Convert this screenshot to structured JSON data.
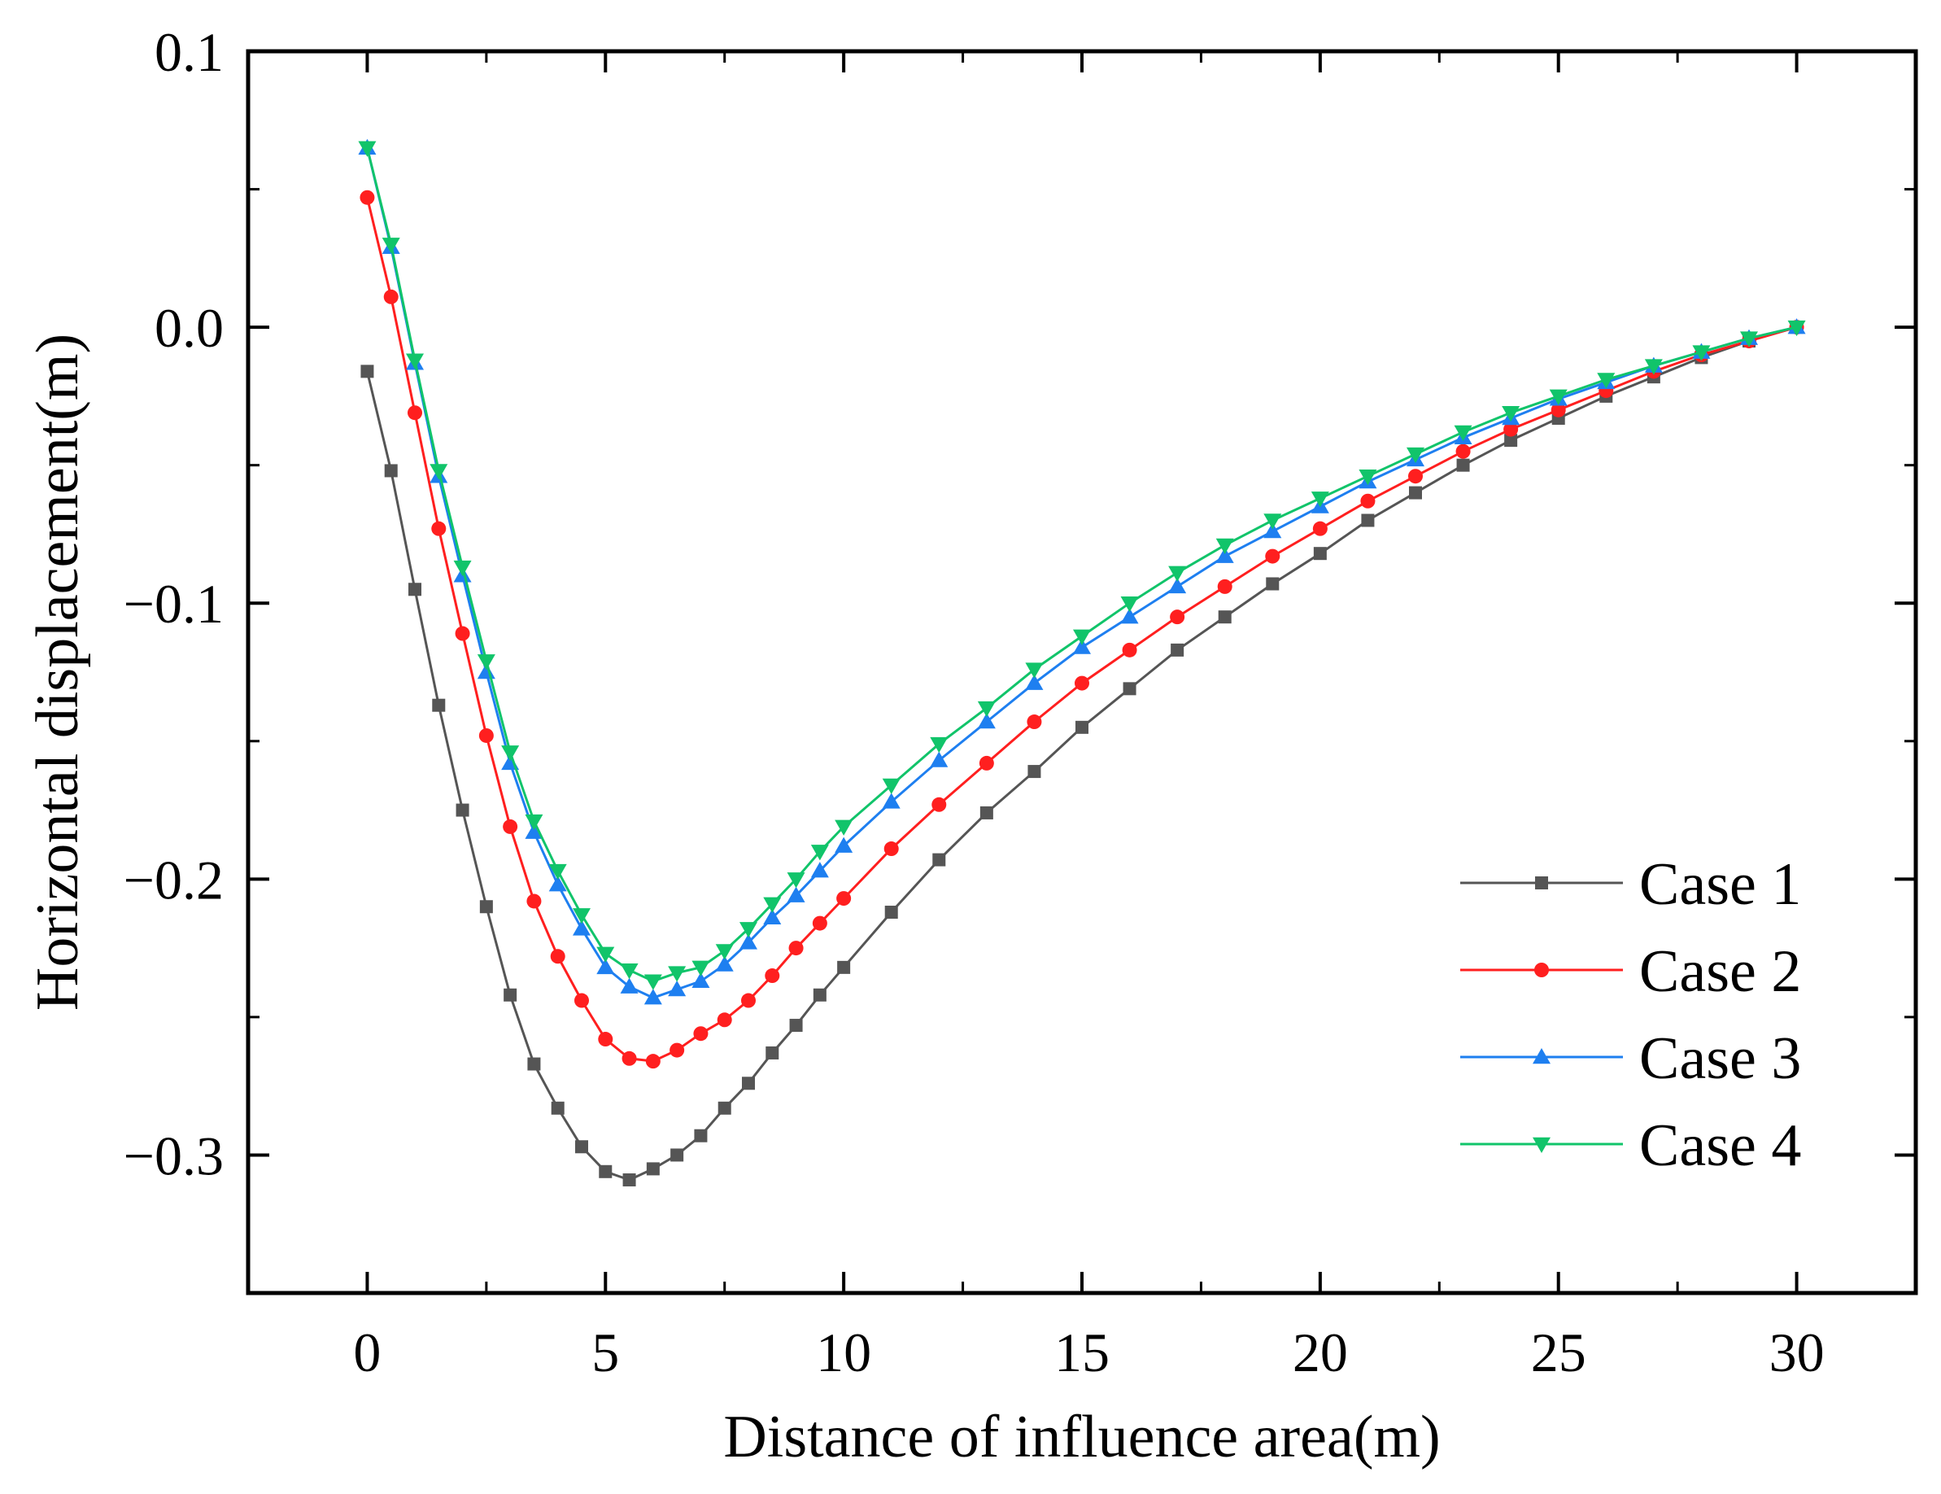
{
  "chart_data": {
    "type": "line",
    "title": "",
    "xlabel": "Distance of influence area(m)",
    "ylabel": "Horizontal displacement(m)",
    "xlim": [
      -2.5,
      32.5
    ],
    "ylim": [
      -0.35,
      0.1
    ],
    "x_ticks": [
      0,
      5,
      10,
      15,
      20,
      25,
      30
    ],
    "x_tick_labels": [
      "0",
      "5",
      "10",
      "15",
      "20",
      "25",
      "30"
    ],
    "y_ticks": [
      0.1,
      0.0,
      -0.1,
      -0.2,
      -0.3
    ],
    "y_tick_labels": [
      "0.1",
      "0.0",
      "−0.1",
      "−0.2",
      "−0.3"
    ],
    "grid": false,
    "legend_position": "bottom-right",
    "series": [
      {
        "name": "Case 1",
        "color": "#555555",
        "marker": "square",
        "x": [
          0,
          0.5,
          1,
          1.5,
          2,
          2.5,
          3,
          3.5,
          4,
          4.5,
          5,
          5.5,
          6,
          6.5,
          7,
          7.5,
          8,
          8.5,
          9,
          9.5,
          10,
          11,
          12,
          13,
          14,
          15,
          16,
          17,
          18,
          19,
          20,
          21,
          22,
          23,
          24,
          25,
          26,
          27,
          28,
          29,
          30
        ],
        "y": [
          -0.016,
          -0.052,
          -0.095,
          -0.137,
          -0.175,
          -0.21,
          -0.242,
          -0.267,
          -0.283,
          -0.297,
          -0.306,
          -0.309,
          -0.305,
          -0.3,
          -0.293,
          -0.283,
          -0.274,
          -0.263,
          -0.253,
          -0.242,
          -0.232,
          -0.212,
          -0.193,
          -0.176,
          -0.161,
          -0.145,
          -0.131,
          -0.117,
          -0.105,
          -0.093,
          -0.082,
          -0.07,
          -0.06,
          -0.05,
          -0.041,
          -0.033,
          -0.025,
          -0.018,
          -0.011,
          -0.005,
          0.0
        ]
      },
      {
        "name": "Case 2",
        "color": "#ff1f1f",
        "marker": "circle",
        "x": [
          0,
          0.5,
          1,
          1.5,
          2,
          2.5,
          3,
          3.5,
          4,
          4.5,
          5,
          5.5,
          6,
          6.5,
          7,
          7.5,
          8,
          8.5,
          9,
          9.5,
          10,
          11,
          12,
          13,
          14,
          15,
          16,
          17,
          18,
          19,
          20,
          21,
          22,
          23,
          24,
          25,
          26,
          27,
          28,
          29,
          30
        ],
        "y": [
          0.047,
          0.011,
          -0.031,
          -0.073,
          -0.111,
          -0.148,
          -0.181,
          -0.208,
          -0.228,
          -0.244,
          -0.258,
          -0.265,
          -0.266,
          -0.262,
          -0.256,
          -0.251,
          -0.244,
          -0.235,
          -0.225,
          -0.216,
          -0.207,
          -0.189,
          -0.173,
          -0.158,
          -0.143,
          -0.129,
          -0.117,
          -0.105,
          -0.094,
          -0.083,
          -0.073,
          -0.063,
          -0.054,
          -0.045,
          -0.037,
          -0.03,
          -0.023,
          -0.016,
          -0.01,
          -0.005,
          0.0
        ]
      },
      {
        "name": "Case 3",
        "color": "#1e7ff0",
        "marker": "triangle-up",
        "x": [
          0,
          0.5,
          1,
          1.5,
          2,
          2.5,
          3,
          3.5,
          4,
          4.5,
          5,
          5.5,
          6,
          6.5,
          7,
          7.5,
          8,
          8.5,
          9,
          9.5,
          10,
          11,
          12,
          13,
          14,
          15,
          16,
          17,
          18,
          19,
          20,
          21,
          22,
          23,
          24,
          25,
          26,
          27,
          28,
          29,
          30
        ],
        "y": [
          0.065,
          0.029,
          -0.013,
          -0.054,
          -0.09,
          -0.125,
          -0.158,
          -0.183,
          -0.202,
          -0.218,
          -0.232,
          -0.239,
          -0.243,
          -0.24,
          -0.237,
          -0.231,
          -0.223,
          -0.214,
          -0.206,
          -0.197,
          -0.188,
          -0.172,
          -0.157,
          -0.143,
          -0.129,
          -0.116,
          -0.105,
          -0.094,
          -0.083,
          -0.074,
          -0.065,
          -0.056,
          -0.048,
          -0.04,
          -0.033,
          -0.026,
          -0.02,
          -0.014,
          -0.009,
          -0.004,
          0.0
        ]
      },
      {
        "name": "Case 4",
        "color": "#11c46a",
        "marker": "triangle-down",
        "x": [
          0,
          0.5,
          1,
          1.5,
          2,
          2.5,
          3,
          3.5,
          4,
          4.5,
          5,
          5.5,
          6,
          6.5,
          7,
          7.5,
          8,
          8.5,
          9,
          9.5,
          10,
          11,
          12,
          13,
          14,
          15,
          16,
          17,
          18,
          19,
          20,
          21,
          22,
          23,
          24,
          25,
          26,
          27,
          28,
          29,
          30
        ],
        "y": [
          0.065,
          0.03,
          -0.012,
          -0.052,
          -0.087,
          -0.121,
          -0.154,
          -0.179,
          -0.197,
          -0.213,
          -0.227,
          -0.233,
          -0.237,
          -0.234,
          -0.232,
          -0.226,
          -0.218,
          -0.209,
          -0.2,
          -0.19,
          -0.181,
          -0.166,
          -0.151,
          -0.138,
          -0.124,
          -0.112,
          -0.1,
          -0.089,
          -0.079,
          -0.07,
          -0.062,
          -0.054,
          -0.046,
          -0.038,
          -0.031,
          -0.025,
          -0.019,
          -0.014,
          -0.009,
          -0.004,
          0.0
        ]
      }
    ]
  }
}
